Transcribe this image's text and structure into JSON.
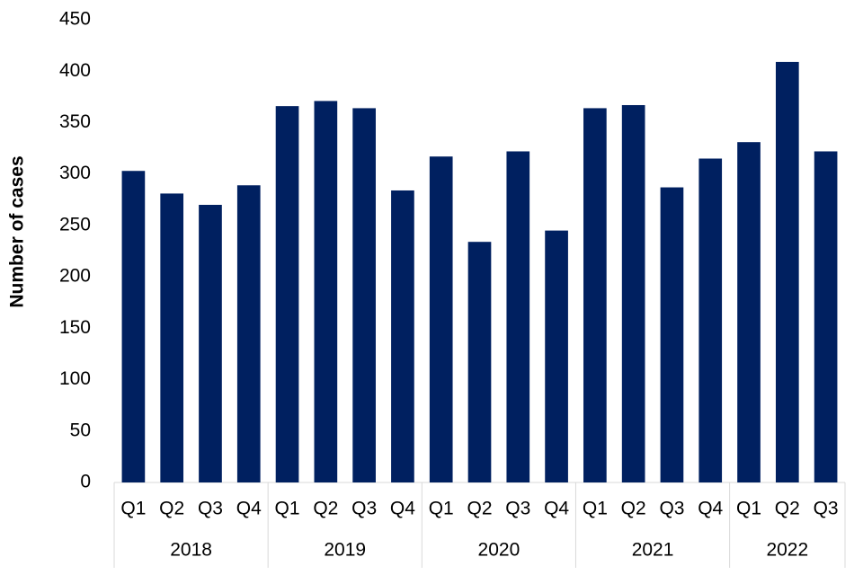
{
  "chart_data": {
    "type": "bar",
    "y_label": "Number of cases",
    "groups": [
      {
        "name": "2018",
        "categories": [
          "Q1",
          "Q2",
          "Q3",
          "Q4"
        ]
      },
      {
        "name": "2019",
        "categories": [
          "Q1",
          "Q2",
          "Q3",
          "Q4"
        ]
      },
      {
        "name": "2020",
        "categories": [
          "Q1",
          "Q2",
          "Q3",
          "Q4"
        ]
      },
      {
        "name": "2021",
        "categories": [
          "Q1",
          "Q2",
          "Q3",
          "Q4"
        ]
      },
      {
        "name": "2022",
        "categories": [
          "Q1",
          "Q2",
          "Q3"
        ]
      }
    ],
    "values": [
      303,
      281,
      270,
      289,
      366,
      371,
      364,
      284,
      317,
      234,
      322,
      245,
      364,
      367,
      287,
      315,
      331,
      409,
      322
    ],
    "color": "#002060",
    "ylim": [
      0,
      450
    ],
    "yticks": [
      0,
      50,
      100,
      150,
      200,
      250,
      300,
      350,
      400,
      450
    ],
    "grid": false
  }
}
